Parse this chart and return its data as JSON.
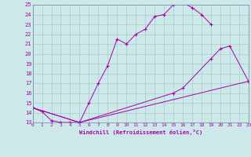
{
  "xlabel": "Windchill (Refroidissement éolien,°C)",
  "bg_color": "#cce8e8",
  "grid_color": "#aacccc",
  "line_color": "#aa00aa",
  "xmin": 0,
  "xmax": 23,
  "ymin": 13,
  "ymax": 25,
  "line1_x": [
    0,
    1,
    2,
    3,
    4,
    5,
    6,
    7,
    8,
    9,
    10,
    11,
    12,
    13,
    14,
    15,
    16,
    17,
    18,
    19
  ],
  "line1_y": [
    14.5,
    14.1,
    13.2,
    13.0,
    13.0,
    13.0,
    15.0,
    17.0,
    18.8,
    21.5,
    21.0,
    22.0,
    22.5,
    23.8,
    24.0,
    25.0,
    25.2,
    24.7,
    24.0,
    23.0
  ],
  "line2_x": [
    0,
    5,
    15,
    16,
    19,
    20,
    21,
    23
  ],
  "line2_y": [
    14.5,
    13.0,
    16.0,
    16.5,
    19.5,
    20.5,
    20.8,
    17.2
  ],
  "line3_x": [
    0,
    5,
    23
  ],
  "line3_y": [
    14.5,
    13.0,
    17.2
  ]
}
